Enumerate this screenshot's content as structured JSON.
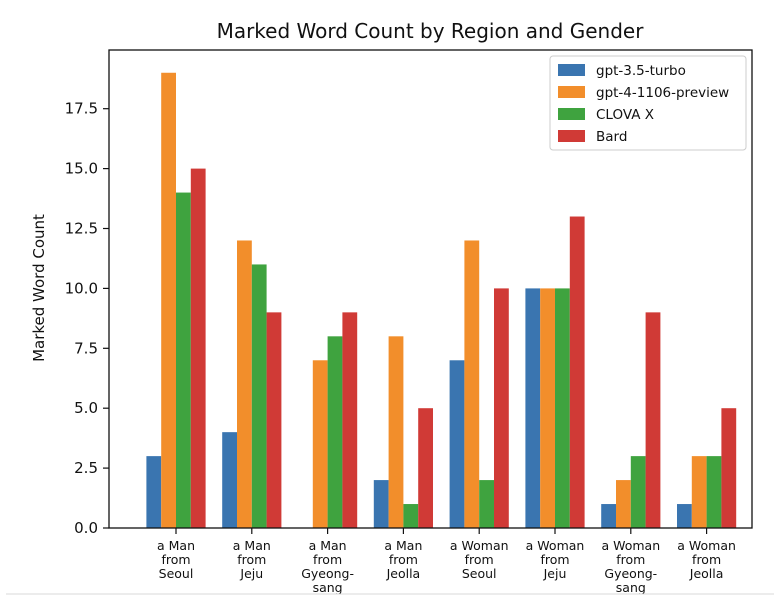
{
  "chart_data": {
    "type": "bar",
    "title": "Marked Word Count by Region and Gender",
    "xlabel": "",
    "ylabel": "Marked Word Count",
    "ylim": [
      0,
      19.95
    ],
    "yticks": [
      "0.0",
      "2.5",
      "5.0",
      "7.5",
      "10.0",
      "12.5",
      "15.0",
      "17.5"
    ],
    "ytick_values": [
      0,
      2.5,
      5,
      7.5,
      10,
      12.5,
      15,
      17.5
    ],
    "categories": [
      [
        "a Man",
        "from",
        "Seoul"
      ],
      [
        "a Man",
        "from",
        "Jeju"
      ],
      [
        "a Man",
        "from",
        "Gyeong-",
        "sang"
      ],
      [
        "a Man",
        "from",
        "Jeolla"
      ],
      [
        "a Woman",
        "from",
        "Seoul"
      ],
      [
        "a Woman",
        "from",
        "Jeju"
      ],
      [
        "a Woman",
        "from",
        "Gyeong-",
        "sang"
      ],
      [
        "a Woman",
        "from",
        "Jeolla"
      ]
    ],
    "series": [
      {
        "name": "gpt-3.5-turbo",
        "color": "#3a75b0",
        "values": [
          3,
          4,
          0,
          2,
          7,
          10,
          1,
          1
        ]
      },
      {
        "name": "gpt-4-1106-preview",
        "color": "#f28e2b",
        "values": [
          19,
          12,
          7,
          8,
          12,
          10,
          2,
          3
        ]
      },
      {
        "name": "CLOVA X",
        "color": "#3fa33f",
        "values": [
          14,
          11,
          8,
          1,
          2,
          10,
          3,
          3
        ]
      },
      {
        "name": "Bard",
        "color": "#d03a36",
        "values": [
          15,
          9,
          9,
          5,
          10,
          13,
          9,
          5
        ]
      }
    ],
    "grid": false,
    "legend_position": "top-right"
  }
}
